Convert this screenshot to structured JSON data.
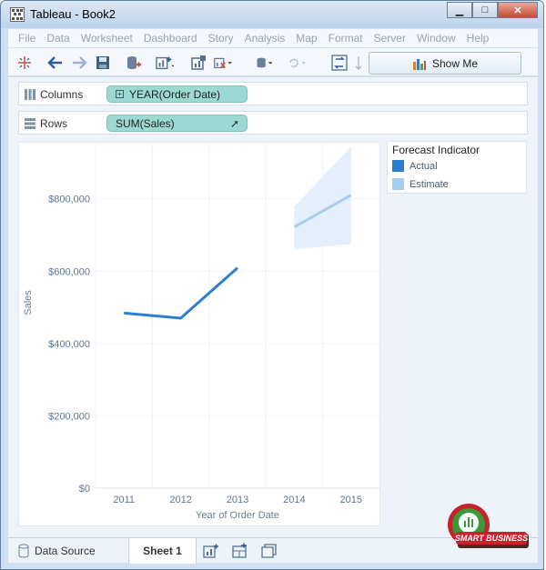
{
  "window": {
    "title": "Tableau - Book2",
    "minimize": "▁",
    "maximize": "□",
    "close": "✕"
  },
  "menu": [
    "File",
    "Data",
    "Worksheet",
    "Dashboard",
    "Story",
    "Analysis",
    "Map",
    "Format",
    "Server",
    "Window",
    "Help"
  ],
  "toolbar": {
    "show_me_label": "Show Me",
    "icons": [
      "tableau-logo-icon",
      "back-arrow-icon",
      "forward-arrow-icon",
      "save-icon",
      "new-data-source-icon",
      "new-worksheet-icon",
      "duplicate-icon",
      "clear-sheet-icon",
      "data-source-icon",
      "refresh-icon",
      "swap-icon",
      "sort-icon"
    ]
  },
  "shelves": {
    "columns_label": "Columns",
    "columns_pill": "YEAR(Order Date)",
    "rows_label": "Rows",
    "rows_pill": "SUM(Sales)"
  },
  "legend": {
    "title": "Forecast Indicator",
    "items": [
      {
        "label": "Actual",
        "color": "#2e7ecf"
      },
      {
        "label": "Estimate",
        "color": "#a7cdf0"
      }
    ]
  },
  "chart_data": {
    "type": "line",
    "xlabel": "Year of Order Date",
    "ylabel": "Sales",
    "categories": [
      "2011",
      "2012",
      "2013",
      "2014",
      "2015"
    ],
    "ylim": [
      0,
      950000
    ],
    "yticks": [
      0,
      200000,
      400000,
      600000,
      800000
    ],
    "ytick_labels": [
      "$0",
      "$200,000",
      "$400,000",
      "$600,000",
      "$800,000"
    ],
    "series": [
      {
        "name": "Actual",
        "x": [
          "2011",
          "2012",
          "2013"
        ],
        "values": [
          484000,
          470000,
          609000
        ],
        "color": "#2e7ecf"
      },
      {
        "name": "Estimate",
        "x": [
          "2014",
          "2015"
        ],
        "values": [
          722000,
          810000
        ],
        "color": "#a7cdf0"
      }
    ],
    "forecast_band": {
      "x": [
        "2014",
        "2015"
      ],
      "lower": [
        660000,
        675000
      ],
      "upper": [
        778000,
        945000
      ],
      "color": "#e3f0fb"
    }
  },
  "status": {
    "data_source_tab": "Data Source",
    "sheet_tab": "Sheet 1"
  },
  "watermark": {
    "text": "SMART BUSINESS"
  }
}
